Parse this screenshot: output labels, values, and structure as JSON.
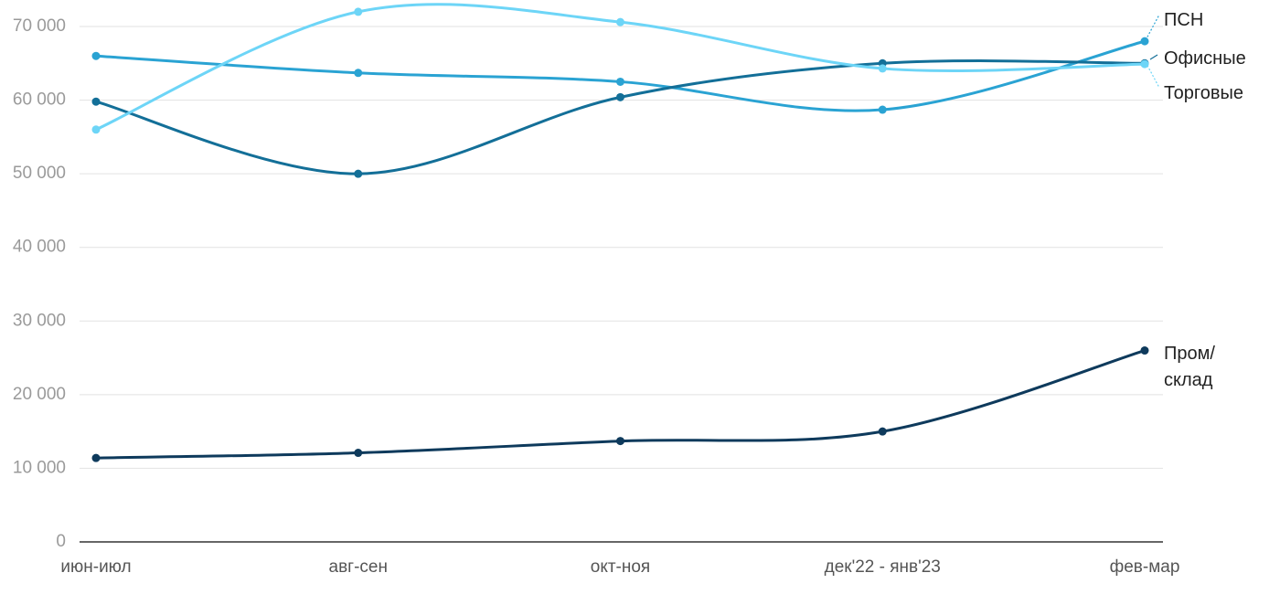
{
  "chart_data": {
    "type": "line",
    "categories": [
      "июн-июл",
      "авг-сен",
      "окт-ноя",
      "дек'22 - янв'23",
      "фев-мар"
    ],
    "series": [
      {
        "name": "ПСН",
        "color": "#2aa3d3",
        "values": [
          66000,
          63700,
          62500,
          58700,
          68000
        ]
      },
      {
        "name": "Офисные",
        "color": "#136f98",
        "values": [
          59800,
          50000,
          60400,
          65000,
          65000
        ]
      },
      {
        "name": "Торговые",
        "color": "#6dd5f7",
        "values": [
          56000,
          72000,
          70600,
          64300,
          64900
        ]
      },
      {
        "name": "Пром/\nсклад",
        "color": "#0e3a5c",
        "values": [
          11400,
          12100,
          13700,
          15000,
          26000
        ]
      }
    ],
    "ylim": [
      0,
      73000
    ],
    "yticks": [
      0,
      {
        "value": 10000,
        "label": "10 000"
      },
      {
        "value": 20000,
        "label": "20 000"
      },
      {
        "value": 30000,
        "label": "30 000"
      },
      {
        "value": 40000,
        "label": "40 000"
      },
      {
        "value": 50000,
        "label": "50 000"
      },
      {
        "value": 60000,
        "label": "60 000"
      },
      {
        "value": 70000,
        "label": "70 000"
      }
    ],
    "grid": true
  }
}
